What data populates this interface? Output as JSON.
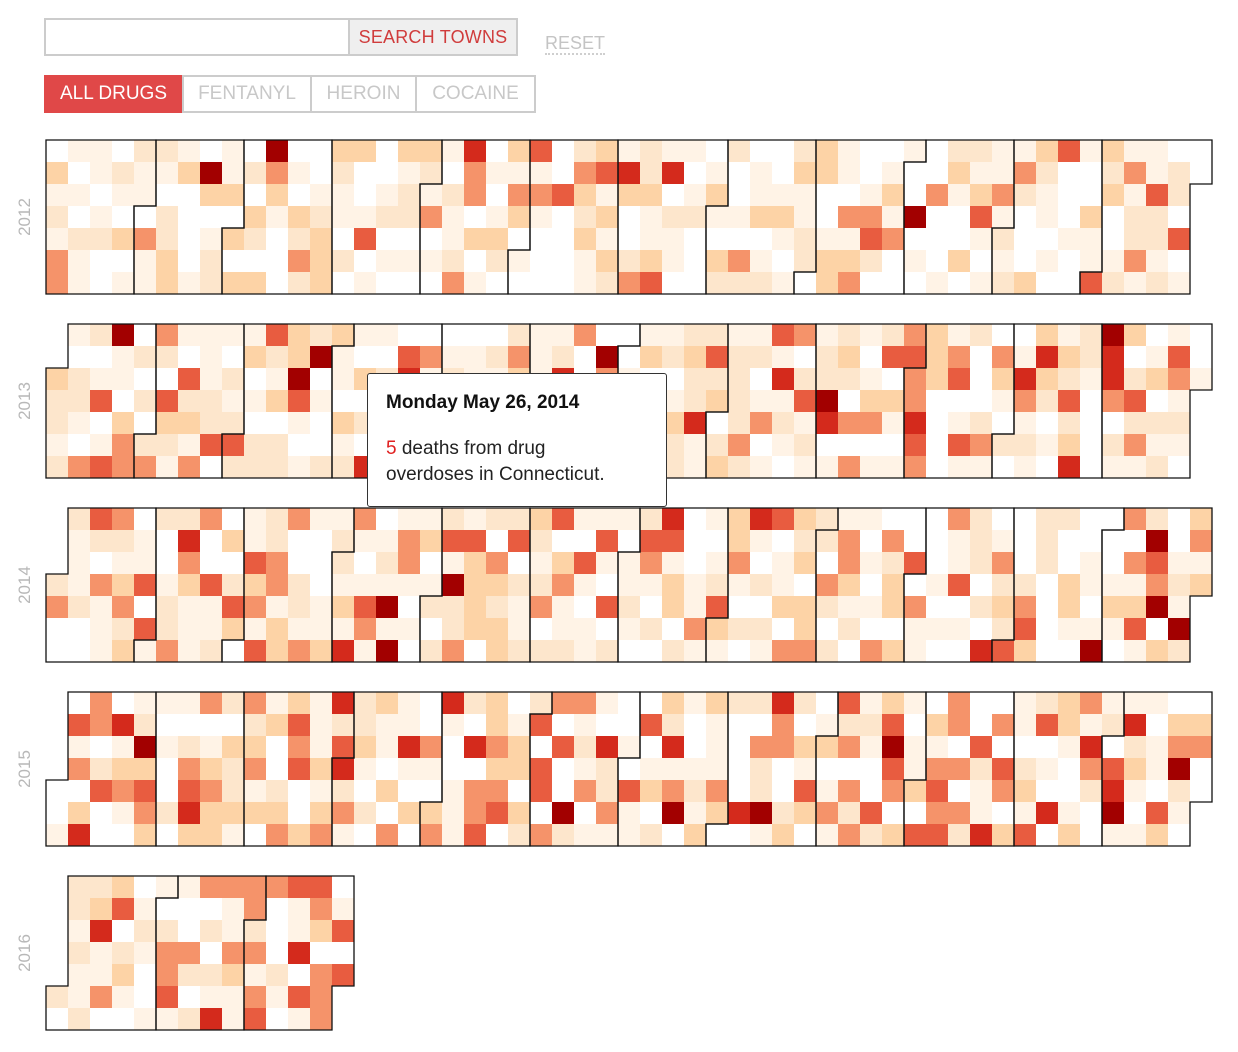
{
  "search": {
    "placeholder": "",
    "value": "",
    "button_label": "SEARCH TOWNS",
    "reset_label": "RESET"
  },
  "filters": [
    {
      "label": "ALL DRUGS",
      "active": true
    },
    {
      "label": "FENTANYL",
      "active": false
    },
    {
      "label": "HEROIN",
      "active": false
    },
    {
      "label": "COCAINE",
      "active": false
    }
  ],
  "tooltip": {
    "date": "Monday May 26, 2014",
    "count": "5",
    "text_line1": " deaths from drug",
    "text_line2": "overdoses in Connecticut."
  },
  "colors": {
    "scale": [
      "#ffffff",
      "#fff3e6",
      "#fde6cc",
      "#fdd3a6",
      "#f5936a",
      "#e85c40",
      "#d42a1c",
      "#a20000"
    ],
    "active_button": "#e04848",
    "search_label": "#d03c3c"
  },
  "chart_data": {
    "type": "heatmap",
    "layout": "calendar",
    "rows_represent": "weekday (Sunday to Saturday)",
    "columns_represent": "week of year",
    "value_meaning": "daily deaths from drug overdoses in Connecticut (color intensity)",
    "years": [
      {
        "label": "2012",
        "year": 2012,
        "months": 12
      },
      {
        "label": "2013",
        "year": 2013,
        "months": 12
      },
      {
        "label": "2014",
        "year": 2014,
        "months": 12
      },
      {
        "label": "2015",
        "year": 2015,
        "months": 12
      },
      {
        "label": "2016",
        "year": 2016,
        "months": 3
      }
    ],
    "color_levels": [
      0,
      1,
      2,
      3,
      4,
      5,
      6,
      7
    ],
    "level_notes": "0 = white (none), 7 = darkest red (highest)",
    "highlighted_day": {
      "date": "2014-05-26",
      "value": 5
    }
  }
}
